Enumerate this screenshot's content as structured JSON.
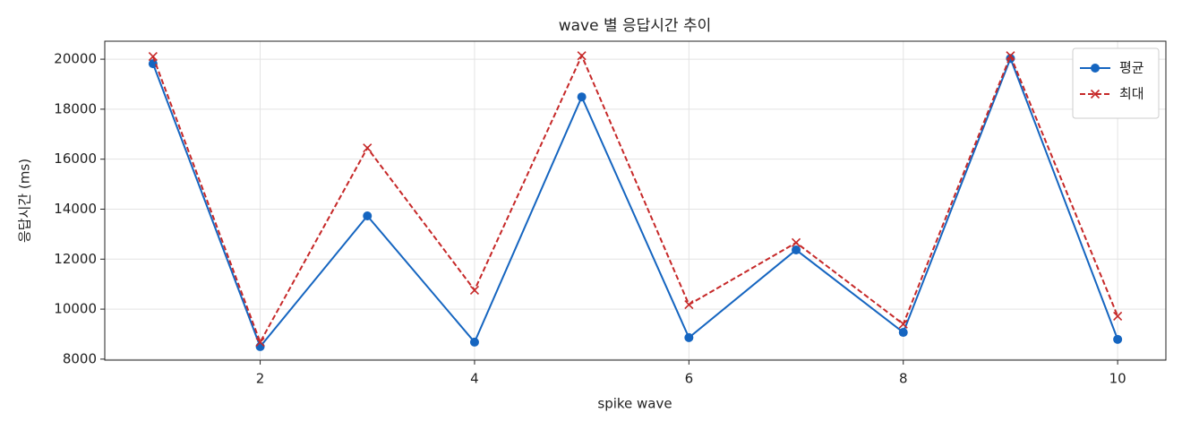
{
  "chart_data": {
    "type": "line",
    "title": "wave 별 응답시간 추이",
    "x_label": "spike wave",
    "y_label": "응답시간 (ms)",
    "x": [
      1,
      2,
      3,
      4,
      5,
      6,
      7,
      8,
      9,
      10
    ],
    "series": [
      {
        "name": "평균",
        "color": "#1565c0",
        "marker": "circle",
        "dashed": false,
        "values": [
          19820,
          8500,
          13730,
          8680,
          18490,
          8860,
          12370,
          9070,
          20030,
          8790
        ]
      },
      {
        "name": "최대",
        "color": "#c62828",
        "marker": "cross",
        "dashed": true,
        "values": [
          20110,
          8680,
          16450,
          10760,
          20140,
          10180,
          12660,
          9400,
          20140,
          9720
        ]
      }
    ],
    "xlim": [
      0.55,
      10.45
    ],
    "xticks": [
      2,
      4,
      6,
      8,
      10
    ],
    "ylim": [
      7960,
      20720
    ],
    "yticks": [
      8000,
      10000,
      12000,
      14000,
      16000,
      18000,
      20000
    ],
    "grid": true,
    "legend": "upper right"
  }
}
